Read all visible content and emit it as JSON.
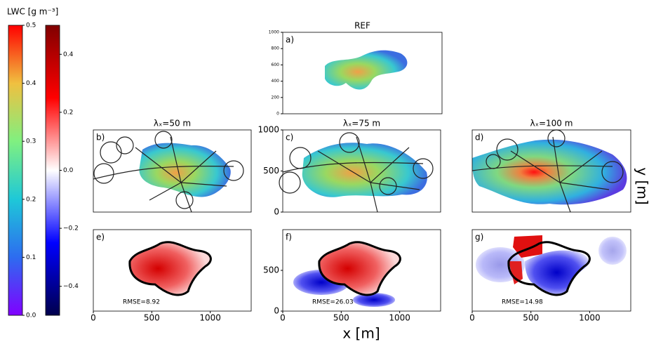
{
  "figure": {
    "xlabel": "x [m]",
    "ylabel": "y [m]"
  },
  "chart_data": [
    {
      "type": "colorbar",
      "title": "LWC [g m⁻³]",
      "ylim": [
        0,
        0.5
      ],
      "yticks": [
        {
          "value": 0,
          "label": "0.0"
        },
        0.1,
        0.2,
        0.3,
        0.4,
        0.5
      ]
    },
    {
      "type": "colorbar",
      "ylim": [
        -0.5,
        0.5
      ],
      "yticks": [
        {
          "value": -0.4,
          "label": "−0.4"
        },
        {
          "value": -0.2,
          "label": "−0.2"
        },
        {
          "value": 0,
          "label": "0.0"
        },
        0.2,
        0.4
      ]
    },
    {
      "type": "heatmap",
      "label": "a)",
      "title": "REF",
      "xlim": [
        0,
        1350
      ],
      "ylim": [
        0,
        1000
      ],
      "yticks": [
        0,
        200,
        400,
        600,
        800,
        1000
      ]
    },
    {
      "type": "heatmap",
      "label": "b)",
      "title": "λₓ=50 m",
      "xlim": [
        0,
        1350
      ],
      "ylim": [
        0,
        1000
      ]
    },
    {
      "type": "heatmap",
      "label": "c)",
      "title": "λₓ=75 m",
      "xlim": [
        0,
        1350
      ],
      "ylim": [
        0,
        1000
      ],
      "yticks": [
        0,
        500,
        1000
      ]
    },
    {
      "type": "heatmap",
      "label": "d)",
      "title": "λₓ=100 m",
      "xlim": [
        0,
        1350
      ],
      "ylim": [
        0,
        1000
      ]
    },
    {
      "type": "heatmap",
      "label": "e)",
      "annotation": "RMSE=8.92",
      "xlim": [
        0,
        1350
      ],
      "ylim": [
        0,
        1000
      ],
      "xticks": [
        0,
        500,
        1000
      ]
    },
    {
      "type": "heatmap",
      "label": "f)",
      "annotation": "RMSE=26.03",
      "xlim": [
        0,
        1350
      ],
      "ylim": [
        0,
        1000
      ],
      "xticks": [
        0,
        500,
        1000
      ],
      "yticks": [
        0,
        500
      ]
    },
    {
      "type": "heatmap",
      "label": "g)",
      "annotation": "RMSE=14.98",
      "xlim": [
        0,
        1350
      ],
      "ylim": [
        0,
        1000
      ],
      "xticks": [
        0,
        500,
        1000
      ]
    }
  ]
}
